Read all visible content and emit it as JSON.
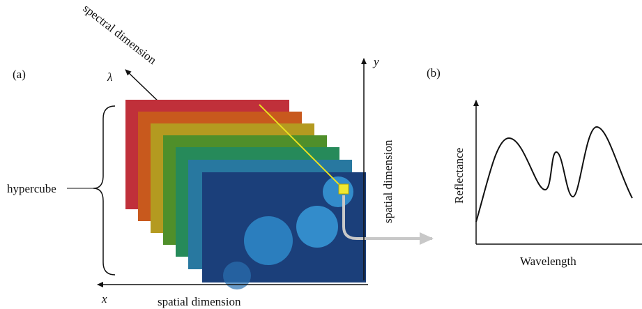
{
  "panel_a": {
    "label": "(a)",
    "spectral_axis": {
      "title": "spectral dimension",
      "symbol": "λ"
    },
    "y_axis": {
      "symbol": "y",
      "title": "spatial dimension"
    },
    "x_axis": {
      "symbol": "x",
      "title": "spatial dimension"
    },
    "bracket_label": "hypercube"
  },
  "panel_b": {
    "label": "(b)",
    "y_axis_title": "Reflectance",
    "x_axis_title": "Wavelength"
  }
}
